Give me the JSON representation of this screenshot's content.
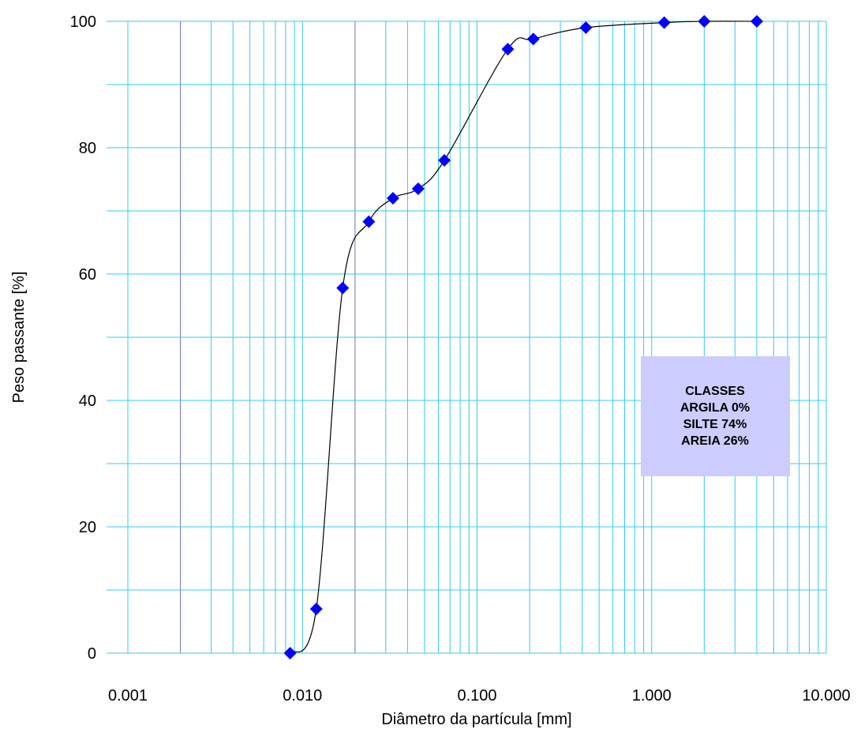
{
  "chart_data": {
    "type": "scatter",
    "x_scale": "log",
    "xlim": [
      0.001,
      10
    ],
    "ylim": [
      0,
      100
    ],
    "xlabel": "Diâmetro da partícula [mm]",
    "ylabel": "Peso passante [%]",
    "x_tick_labels": [
      "0.001",
      "0.010",
      "0.100",
      "1.000",
      "10.000"
    ],
    "y_tick_labels": [
      "0",
      "20",
      "40",
      "60",
      "80",
      "100"
    ],
    "grid": true,
    "series": [
      {
        "marker": "diamond",
        "line": "smooth",
        "color": "#0000ff",
        "line_color": "#000000",
        "x": [
          0.0085,
          0.012,
          0.017,
          0.024,
          0.033,
          0.046,
          0.065,
          0.15,
          0.21,
          0.42,
          1.18,
          2.0,
          4.0
        ],
        "y": [
          0,
          7,
          57.8,
          68.3,
          72,
          73.5,
          78,
          95.6,
          97.2,
          99,
          99.8,
          100,
          100
        ]
      }
    ],
    "legend_box": {
      "lines": [
        "CLASSES",
        "ARGILA 0%",
        "SILTE 74%",
        "AREIA 26%"
      ],
      "fill": "#ccccff"
    },
    "colors": {
      "grid": "#33ccee",
      "grid_dark": "#6677aa",
      "marker": "#0000ff"
    }
  }
}
